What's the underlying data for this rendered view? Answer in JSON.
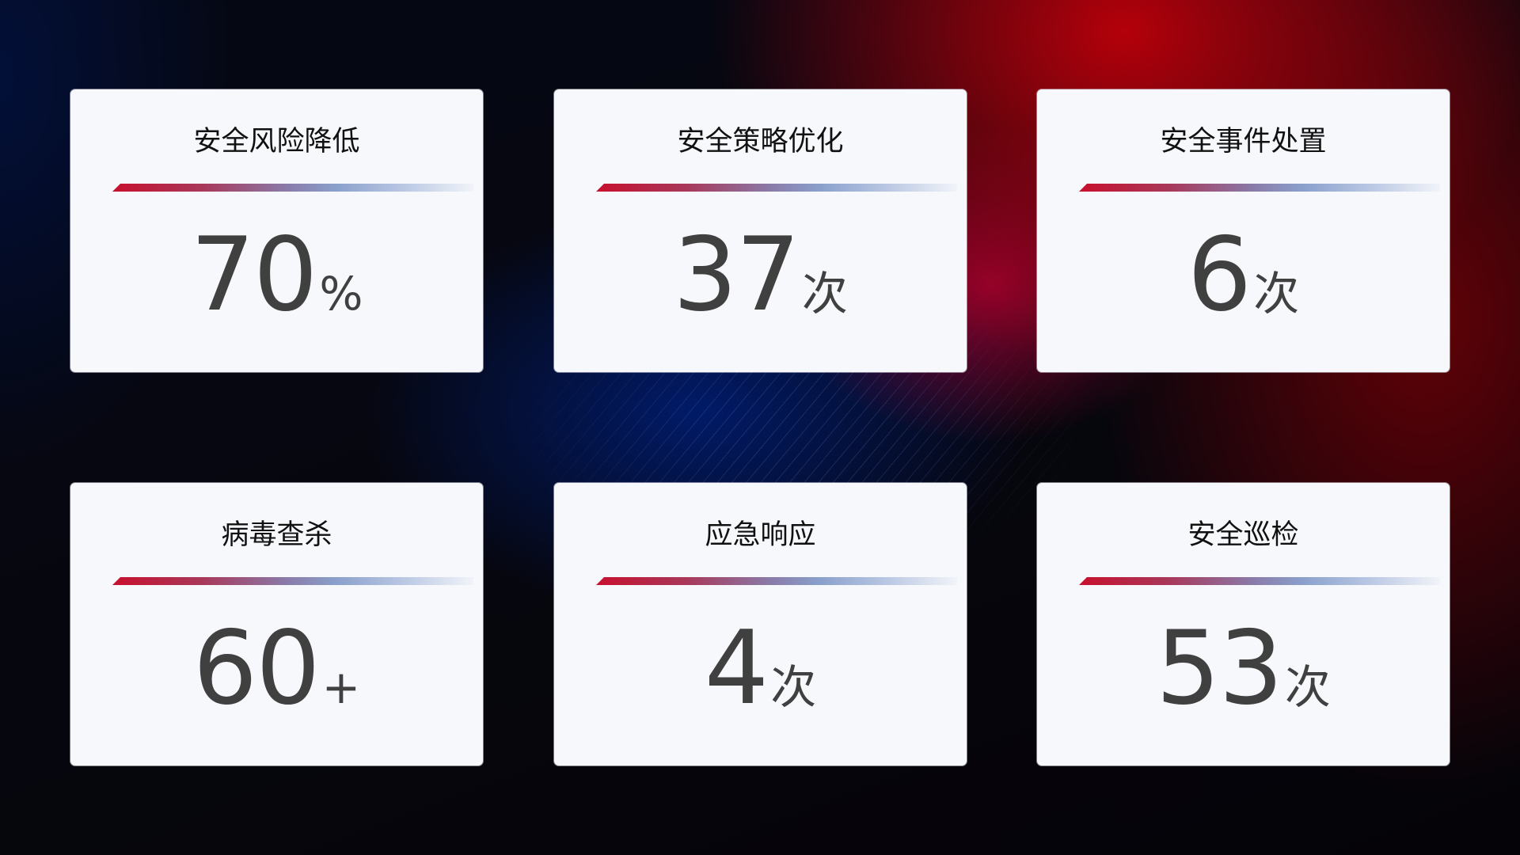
{
  "cards": [
    {
      "title": "安全风险降低",
      "value": "70",
      "unit": "%"
    },
    {
      "title": "安全策略优化",
      "value": "37",
      "unit": "次"
    },
    {
      "title": "安全事件处置",
      "value": "6",
      "unit": "次"
    },
    {
      "title": "病毒查杀",
      "value": "60",
      "unit": "+"
    },
    {
      "title": "应急响应",
      "value": "4",
      "unit": "次"
    },
    {
      "title": "安全巡检",
      "value": "53",
      "unit": "次"
    }
  ],
  "colors": {
    "accent_red": "#c8102e",
    "accent_blue": "#8aa0cc",
    "value_text": "#404040",
    "card_bg": "#f6f8fc"
  }
}
